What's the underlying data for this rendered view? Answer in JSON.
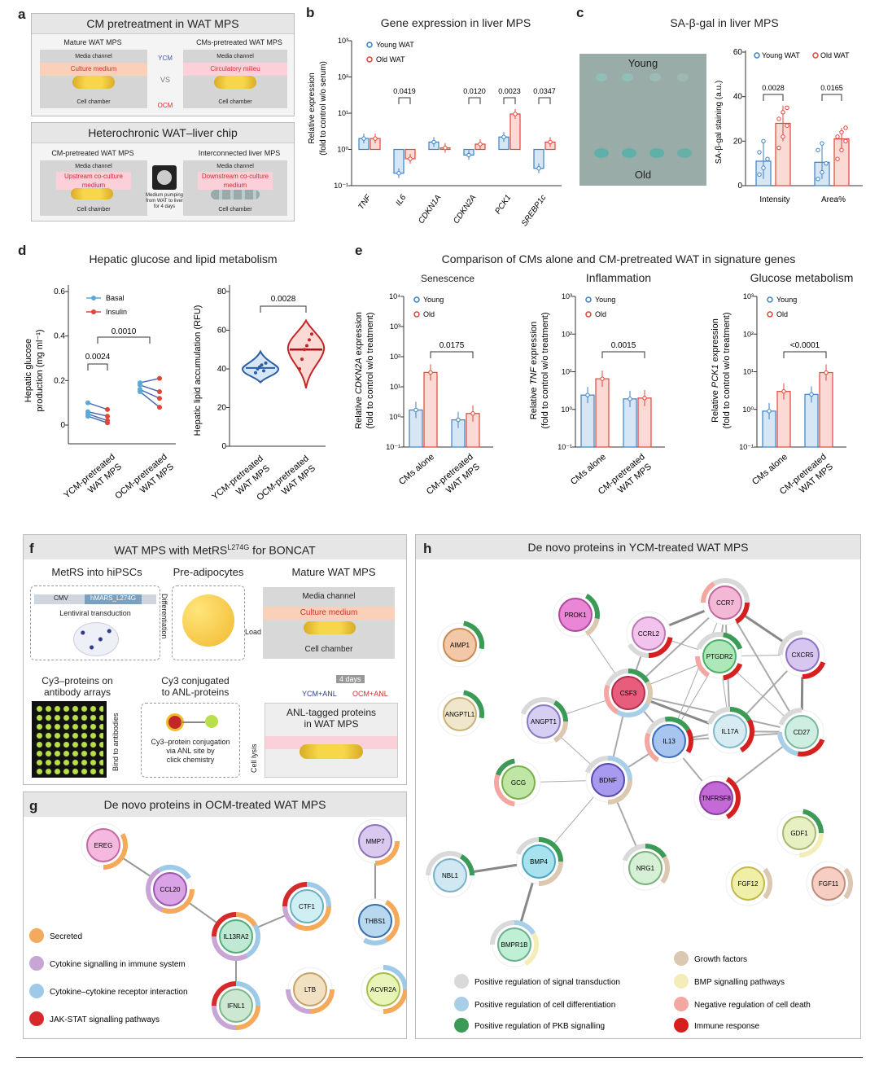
{
  "panel_a": {
    "letter": "a",
    "top_title": "CM pretreatment in WAT MPS",
    "mature_label": "Mature WAT MPS",
    "cms_label": "CMs-pretreated WAT MPS",
    "media_channel": "Media channel",
    "culture_medium": "Culture medium",
    "circulatory_milieu": "Circulatory milieu",
    "cell_chamber": "Cell chamber",
    "ycm": "YCM",
    "ocm": "OCM",
    "vs": "VS",
    "bottom_title": "Heterochronic WAT–liver chip",
    "cm_pretreated": "CM-pretreated WAT MPS",
    "interconnected": "Interconnected liver MPS",
    "upstream": "Upstream co-culture medium",
    "downstream": "Downstream co-culture medium",
    "pumping": "Medium pumping from WAT to liver for 4 days"
  },
  "panel_b": {
    "letter": "b",
    "title": "Gene expression in liver MPS",
    "ylabel1": "Relative expression",
    "ylabel2": "(fold to control w/o serum)",
    "legend": [
      "Young WAT",
      "Old WAT"
    ],
    "pvalues": [
      "0.0419",
      "0.0120",
      "0.0023",
      "0.0347"
    ],
    "ticks": [
      "10³",
      "10²",
      "10¹",
      "10⁰",
      "10⁻¹"
    ]
  },
  "panel_c": {
    "letter": "c",
    "title": "SA-β-gal in liver MPS",
    "young": "Young",
    "old": "Old",
    "ylabel": "SA-β-gal staining (a.u.)",
    "legend": [
      "Young WAT",
      "Old WAT"
    ],
    "pvalues": [
      "0.0028",
      "0.0165"
    ],
    "ticks": [
      "60",
      "40",
      "20",
      "0"
    ]
  },
  "panel_d": {
    "letter": "d",
    "title": "Hepatic glucose and lipid metabolism",
    "ylabel_left1": "Hepatic glucose",
    "ylabel_left2": "production (mg ml⁻¹)",
    "legend": [
      "Basal",
      "Insulin"
    ],
    "pvalues_left": [
      "0.0024",
      "0.0010"
    ],
    "ticks_left": [
      "0.6",
      "0.4",
      "0.2",
      "0"
    ],
    "ylabel_right": "Hepatic lipid accumulation (RFU)",
    "pvalue_right": "0.0028",
    "ticks_right": [
      "80",
      "60",
      "40",
      "20",
      "0"
    ],
    "xcat1": [
      "YCM-pretreated",
      "WAT MPS"
    ],
    "xcat2": [
      "OCM-pretreated",
      "WAT MPS"
    ]
  },
  "panel_e": {
    "letter": "e",
    "title": "Comparison of CMs alone and CM-pretreated WAT in signature genes",
    "sub1": "Senescence",
    "sub2": "Inflammation",
    "sub3": "Glucose metabolism",
    "ylabel1a": "Relative ",
    "ylabel1g": "CDKN2A",
    "ylabel1b": " expression",
    "ylabel2g": "TNF",
    "ylabel3g": "PCK1",
    "ylabel_sub": "(fold to control w/o treatment)",
    "legend": [
      "Young",
      "Old"
    ],
    "pvalues": [
      "0.0175",
      "0.0015",
      "<0.0001"
    ],
    "xcat1": "CMs alone",
    "xcat2": [
      "CM-pretreated",
      "WAT MPS"
    ],
    "ticks4": [
      "10⁴",
      "10³",
      "10²",
      "10¹",
      "10⁰",
      "10⁻¹"
    ],
    "ticks3": [
      "10³",
      "10²",
      "10¹",
      "10⁰",
      "10⁻¹"
    ]
  },
  "panel_f": {
    "letter": "f",
    "title_a": "WAT MPS with MetRS",
    "title_sup": "L274G",
    "title_b": " for BONCAT",
    "metrs": "MetRS into hiPSCs",
    "preadip": "Pre-adipocytes",
    "mature": "Mature WAT MPS",
    "cmv": "CMV",
    "hmars": "hMARS_L274G",
    "lentiviral": "Lentiviral transduction",
    "differentiation": "Differentiation",
    "load": "Load",
    "media_channel": "Media channel",
    "culture_medium": "Culture medium",
    "cell_chamber": "Cell chamber",
    "four_days": "4 days",
    "ycm_anl": "YCM+ANL",
    "ocm_anl": "OCM+ANL",
    "cy3_arrays1": "Cy3–proteins on",
    "cy3_arrays2": "antibody arrays",
    "cy3_conj1": "Cy3 conjugated",
    "cy3_conj2": "to ANL-proteins",
    "anl_tagged1": "ANL-tagged proteins",
    "anl_tagged2": "in WAT MPS",
    "bind": "Bind to antibodies",
    "cell_lysis": "Cell lysis",
    "conj1": "Cy3–protein conjugation",
    "conj2": "via ANL site by",
    "conj3": "click chemistry"
  },
  "panel_g": {
    "letter": "g",
    "title": "De novo proteins in OCM-treated WAT MPS",
    "nodes": [
      "EREG",
      "CCL20",
      "IL13RA2",
      "CTF1",
      "MMP7",
      "THBS1",
      "IFNL1",
      "LTB",
      "ACVR2A"
    ],
    "legend": [
      "Secreted",
      "Cytokine signalling in immune system",
      "Cytokine–cytokine receptor interaction",
      "JAK-STAT signalling pathways"
    ],
    "legend_colors": [
      "#f5a95a",
      "#c7a6d6",
      "#9ecae8",
      "#d62a2a"
    ]
  },
  "panel_h": {
    "letter": "h",
    "title": "De novo proteins in YCM-treated WAT MPS",
    "nodes": [
      "AIMP1",
      "PROK1",
      "CCR7",
      "CCRL2",
      "CXCR5",
      "PTGDR2",
      "ANGPTL1",
      "CSF3",
      "ANGPT1",
      "IL13",
      "IL17A",
      "CD27",
      "GCG",
      "BDNF",
      "TNFRSF8",
      "GDF1",
      "NBL1",
      "BMP4",
      "NRG1",
      "FGF12",
      "FGF11",
      "BMPR1B"
    ],
    "legend": [
      "Positive regulation of signal transduction",
      "Positive regulation of cell differentiation",
      "Positive regulation of PKB signalling",
      "Growth factors",
      "BMP signalling pathways",
      "Negative regulation of cell death",
      "Immune response"
    ],
    "legend_colors": [
      "#d9d9d9",
      "#a9cfe8",
      "#3a9a56",
      "#dcc7b0",
      "#f3edb8",
      "#f4a7a0",
      "#d62020"
    ]
  },
  "colors": {
    "young": "#3b82c4",
    "old": "#e0453a",
    "young_fill": "#d6e6f5",
    "old_fill": "#fbd9d4"
  }
}
